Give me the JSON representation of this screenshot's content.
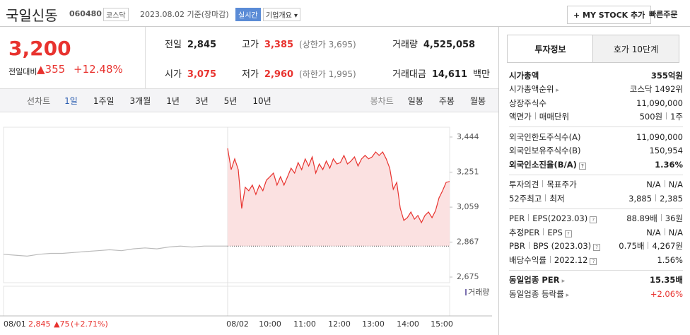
{
  "header": {
    "title": "국일신동",
    "code": "060480",
    "market": "코스닥",
    "date": "2023.08.02 기준(장마감)",
    "realtime": "실시간",
    "company": "기업개요",
    "mystock": "+ MY STOCK 추가",
    "quick_order": "빠른주문"
  },
  "price": {
    "current": "3,200",
    "change_label": "전일대비",
    "change": "▲355",
    "rate": "+12.48%"
  },
  "summary": [
    [
      {
        "label": "전일",
        "value": "2,845"
      },
      {
        "label": "고가",
        "value": "3,385",
        "sub": "(상한가 3,695)"
      },
      {
        "label": "거래량",
        "value": "4,525,058"
      }
    ],
    [
      {
        "label": "시가",
        "value": "3,075"
      },
      {
        "label": "저가",
        "value": "2,960",
        "sub": "(하한가 1,995)"
      },
      {
        "label": "거래대금",
        "value": "14,611",
        "unit": "백만"
      }
    ]
  ],
  "chart_tabs": {
    "line_label": "선차트",
    "line": [
      "1일",
      "1주일",
      "3개월",
      "1년",
      "3년",
      "5년",
      "10년"
    ],
    "candle_label": "봉차트",
    "candle": [
      "일봉",
      "주봉",
      "월봉"
    ]
  },
  "chart_data": {
    "type": "line",
    "ylim": [
      2644,
      3498
    ],
    "yticks": [
      {
        "value": 2675,
        "label": "2,675"
      },
      {
        "value": 2867,
        "label": "2,867"
      },
      {
        "value": 3059,
        "label": "3,059"
      },
      {
        "value": 3251,
        "label": "3,251"
      },
      {
        "value": 3444,
        "label": "3,444"
      }
    ],
    "x_labels": [
      "08/02",
      "10:00",
      "11:00",
      "12:00",
      "13:00",
      "14:00",
      "15:00"
    ],
    "prev_day": {
      "date": "08/01",
      "close": "2,845",
      "change": "▲75",
      "rate": "(+2.71%)"
    },
    "volume_label": "거래량",
    "series": [
      {
        "color": "#bbbbbb",
        "values": [
          2800,
          2795,
          2790,
          2800,
          2805,
          2805,
          2810,
          2815,
          2820,
          2825,
          2820,
          2830,
          2835,
          2830,
          2840,
          2845,
          2840,
          2845,
          2845,
          2845
        ]
      },
      {
        "color": "#e8332f",
        "values": [
          3382,
          3265,
          3324,
          3265,
          3052,
          3168,
          3149,
          3180,
          3129,
          3180,
          3149,
          3207,
          3226,
          3246,
          3180,
          3226,
          3180,
          3226,
          3273,
          3246,
          3304,
          3265,
          3324,
          3285,
          3335,
          3246,
          3296,
          3265,
          3312,
          3273,
          3324,
          3296,
          3304,
          3343,
          3296,
          3312,
          3335,
          3285,
          3324,
          3343,
          3324,
          3335,
          3362,
          3343,
          3362,
          3324,
          3273,
          3157,
          3195,
          3052,
          2986,
          3001,
          3032,
          2993,
          3013,
          2974,
          3013,
          3032,
          3001,
          3040,
          3110,
          3149,
          3195,
          3200
        ]
      }
    ]
  },
  "info": {
    "tabs": [
      "투자정보",
      "호가 10단계"
    ],
    "sections": [
      [
        {
          "label": [
            "시가총액"
          ],
          "value": [
            "355억원"
          ],
          "bold": true
        },
        {
          "label": [
            "시가총액순위"
          ],
          "arrow": true,
          "value": [
            "코스닥 1492위"
          ]
        },
        {
          "label": [
            "상장주식수"
          ],
          "value": [
            "11,090,000"
          ]
        },
        {
          "label": [
            "액면가",
            "매매단위"
          ],
          "value": [
            "500원",
            "1주"
          ]
        }
      ],
      [
        {
          "label": [
            "외국인한도주식수(A)"
          ],
          "value": [
            "11,090,000"
          ]
        },
        {
          "label": [
            "외국인보유주식수(B)"
          ],
          "value": [
            "150,954"
          ]
        },
        {
          "label": [
            "외국인소진율(B/A)"
          ],
          "help": true,
          "value": [
            "1.36%"
          ],
          "bold": true
        }
      ],
      [
        {
          "label": [
            "투자의견",
            "목표주가"
          ],
          "value": [
            "N/A",
            "N/A"
          ]
        },
        {
          "label": [
            "52주최고",
            "최저"
          ],
          "value": [
            "3,885",
            "2,385"
          ]
        }
      ],
      [
        {
          "label": [
            "PER",
            "EPS(2023.03)"
          ],
          "help": true,
          "value": [
            "88.89배",
            "36원"
          ]
        },
        {
          "label": [
            "추정PER",
            "EPS"
          ],
          "help": true,
          "value": [
            "N/A",
            "N/A"
          ]
        },
        {
          "label": [
            "PBR",
            "BPS (2023.03)"
          ],
          "help": true,
          "value": [
            "0.75배",
            "4,267원"
          ]
        },
        {
          "label": [
            "배당수익률",
            "2022.12"
          ],
          "help": true,
          "value": [
            "1.56%"
          ]
        }
      ],
      [
        {
          "label": [
            "동일업종 PER"
          ],
          "arrow": true,
          "value": [
            "15.35배"
          ],
          "bold": true
        },
        {
          "label": [
            "동일업종 등락률"
          ],
          "arrow": true,
          "value": [
            "+2.06%"
          ],
          "up": true
        }
      ]
    ]
  }
}
